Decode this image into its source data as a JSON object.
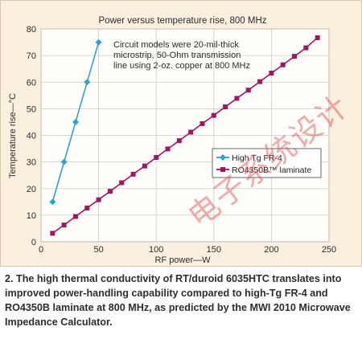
{
  "chart_data": {
    "type": "line",
    "title": "Power versus temperature rise, 800 MHz",
    "xlabel": "RF power—W",
    "ylabel": "Temperature rise—°C",
    "xlim": [
      0,
      250
    ],
    "ylim": [
      0,
      80
    ],
    "xticks": [
      0,
      50,
      100,
      150,
      200,
      250
    ],
    "yticks": [
      0,
      10,
      20,
      30,
      40,
      50,
      60,
      70,
      80
    ],
    "grid": true,
    "annotation": [
      "Circuit models were 20-mil-thick",
      "microstrip, 50-Ohm transmission",
      "line using 2-oz. copper at 800 MHz"
    ],
    "legend_position": "center-right",
    "series": [
      {
        "name": "High Tg FR-4",
        "color": "#2aa4cf",
        "marker": "diamond",
        "x": [
          10,
          20,
          30,
          40,
          50
        ],
        "y": [
          15,
          30,
          45,
          60,
          75
        ]
      },
      {
        "name": "RO4350B™ laminate",
        "color": "#a3165c",
        "marker": "square",
        "x": [
          10,
          20,
          30,
          40,
          50,
          60,
          70,
          80,
          90,
          100,
          110,
          120,
          130,
          140,
          150,
          160,
          170,
          180,
          190,
          200,
          210,
          220,
          230,
          240
        ],
        "y": [
          3.2,
          6.3,
          9.5,
          12.7,
          15.8,
          19.0,
          22.2,
          25.4,
          28.5,
          31.7,
          34.9,
          38.0,
          41.2,
          44.4,
          47.5,
          50.7,
          53.9,
          57.0,
          60.2,
          63.4,
          66.5,
          69.7,
          72.9,
          76.7
        ]
      }
    ]
  },
  "caption": "2. The high thermal conductivity of RT/duroid 6035HTC translates into improved power-handling capability compared to high-Tg FR-4 and RO4350B laminate at 800 MHz, as predicted by the MWI 2010 Microwave Impedance Calculator.",
  "watermark": "电子系统设计"
}
